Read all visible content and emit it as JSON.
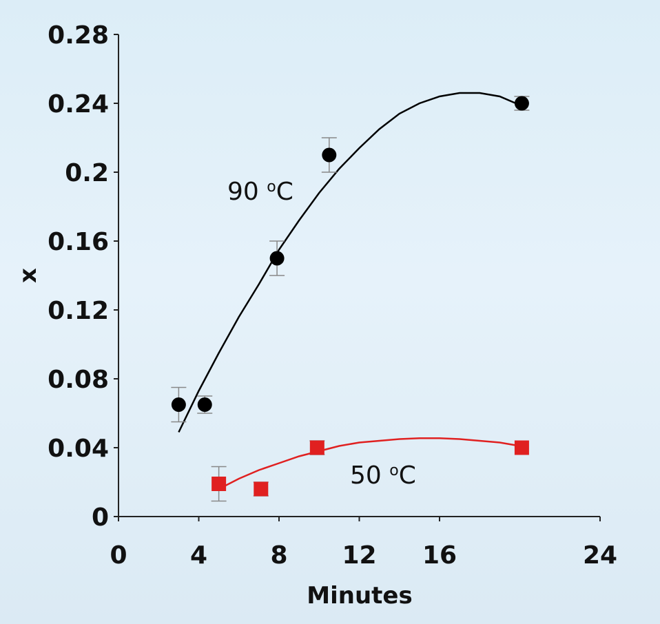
{
  "chart_data": {
    "type": "scatter",
    "title": "",
    "xlabel": "Minutes",
    "ylabel": "x",
    "xlim": [
      0,
      24
    ],
    "ylim": [
      0,
      0.28
    ],
    "x_ticks": [
      "0",
      "4",
      "8",
      "12",
      "16",
      "24"
    ],
    "y_ticks": [
      "0",
      "0.04",
      "0.08",
      "0.12",
      "0.16",
      "0.2",
      "0.24",
      "0.28"
    ],
    "grid": false,
    "legend": "none",
    "series": [
      {
        "name": "90 °C",
        "label_prefix": "90 ",
        "label_degree": "o",
        "label_unit": "C",
        "marker": "circle",
        "color": "#000000",
        "points": [
          {
            "x": 3.0,
            "y": 0.065,
            "err": 0.01
          },
          {
            "x": 4.3,
            "y": 0.065,
            "err": 0.005
          },
          {
            "x": 7.9,
            "y": 0.15,
            "err": 0.01
          },
          {
            "x": 10.5,
            "y": 0.21,
            "err": 0.01
          },
          {
            "x": 20.1,
            "y": 0.24,
            "err": 0.004
          }
        ],
        "fit_curve": [
          [
            3.0,
            0.049
          ],
          [
            4.0,
            0.073
          ],
          [
            5.0,
            0.095
          ],
          [
            6.0,
            0.116
          ],
          [
            7.0,
            0.135
          ],
          [
            8.0,
            0.155
          ],
          [
            9.0,
            0.172
          ],
          [
            10.0,
            0.188
          ],
          [
            11.0,
            0.202
          ],
          [
            12.0,
            0.214
          ],
          [
            13.0,
            0.225
          ],
          [
            14.0,
            0.234
          ],
          [
            15.0,
            0.24
          ],
          [
            16.0,
            0.244
          ],
          [
            17.0,
            0.246
          ],
          [
            18.0,
            0.246
          ],
          [
            19.0,
            0.244
          ],
          [
            20.0,
            0.239
          ]
        ]
      },
      {
        "name": "50 °C",
        "label_prefix": "50 ",
        "label_degree": "o",
        "label_unit": "C",
        "marker": "square",
        "color": "#e02020",
        "points": [
          {
            "x": 5.0,
            "y": 0.019,
            "err": 0.01
          },
          {
            "x": 7.1,
            "y": 0.016,
            "err": 0.004
          },
          {
            "x": 9.9,
            "y": 0.04,
            "err": 0.004
          },
          {
            "x": 20.1,
            "y": 0.04,
            "err": 0.0
          }
        ],
        "fit_curve": [
          [
            5.0,
            0.016
          ],
          [
            6.0,
            0.022
          ],
          [
            7.0,
            0.027
          ],
          [
            8.0,
            0.031
          ],
          [
            9.0,
            0.035
          ],
          [
            10.0,
            0.038
          ],
          [
            11.0,
            0.041
          ],
          [
            12.0,
            0.043
          ],
          [
            13.0,
            0.044
          ],
          [
            14.0,
            0.045
          ],
          [
            15.0,
            0.0455
          ],
          [
            16.0,
            0.0455
          ],
          [
            17.0,
            0.045
          ],
          [
            18.0,
            0.044
          ],
          [
            19.0,
            0.043
          ],
          [
            20.0,
            0.041
          ]
        ]
      }
    ]
  }
}
